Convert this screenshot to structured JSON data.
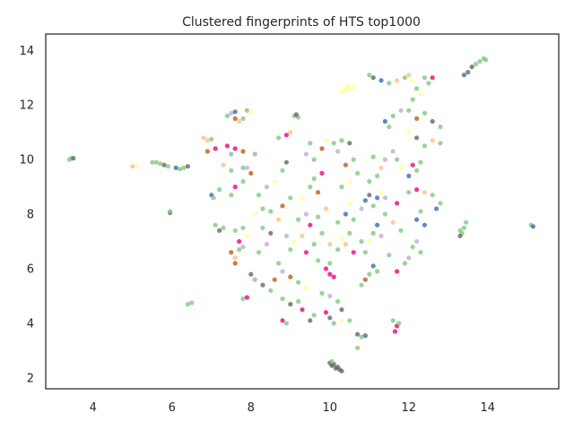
{
  "chart_data": {
    "type": "scatter",
    "title": "Clustered fingerprints of HTS top1000",
    "xlabel": "",
    "ylabel": "",
    "xlim": [
      2.8,
      15.8
    ],
    "ylim": [
      1.6,
      14.6
    ],
    "xticks": [
      4,
      6,
      8,
      10,
      12,
      14
    ],
    "yticks": [
      2,
      4,
      6,
      8,
      10,
      12,
      14
    ],
    "grid": false,
    "legend": "none",
    "point_alpha": 0.8,
    "palette": [
      "#7fc97f",
      "#beaed4",
      "#fdc086",
      "#ffff99",
      "#386cb0",
      "#f0027f",
      "#bf5b17",
      "#666666"
    ],
    "points": [
      {
        "x": 3.4,
        "y": 10.0,
        "c": 0
      },
      {
        "x": 3.45,
        "y": 10.05,
        "c": 0
      },
      {
        "x": 3.5,
        "y": 10.05,
        "c": 7
      },
      {
        "x": 5.0,
        "y": 9.75,
        "c": 2
      },
      {
        "x": 5.1,
        "y": 9.8,
        "c": 3
      },
      {
        "x": 5.5,
        "y": 9.9,
        "c": 0
      },
      {
        "x": 5.6,
        "y": 9.9,
        "c": 0
      },
      {
        "x": 5.7,
        "y": 9.85,
        "c": 0
      },
      {
        "x": 5.8,
        "y": 9.8,
        "c": 7
      },
      {
        "x": 5.9,
        "y": 9.75,
        "c": 0
      },
      {
        "x": 6.1,
        "y": 9.7,
        "c": 4
      },
      {
        "x": 6.2,
        "y": 9.65,
        "c": 0
      },
      {
        "x": 6.3,
        "y": 9.7,
        "c": 0
      },
      {
        "x": 6.4,
        "y": 9.75,
        "c": 7
      },
      {
        "x": 5.95,
        "y": 8.05,
        "c": 7
      },
      {
        "x": 5.95,
        "y": 8.1,
        "c": 0
      },
      {
        "x": 6.4,
        "y": 4.7,
        "c": 0
      },
      {
        "x": 6.5,
        "y": 4.75,
        "c": 0
      },
      {
        "x": 6.8,
        "y": 10.8,
        "c": 2
      },
      {
        "x": 6.9,
        "y": 10.7,
        "c": 2
      },
      {
        "x": 7.0,
        "y": 10.75,
        "c": 0
      },
      {
        "x": 6.9,
        "y": 10.3,
        "c": 6
      },
      {
        "x": 7.1,
        "y": 10.4,
        "c": 5
      },
      {
        "x": 7.0,
        "y": 8.7,
        "c": 4
      },
      {
        "x": 7.05,
        "y": 8.6,
        "c": 0
      },
      {
        "x": 7.2,
        "y": 8.9,
        "c": 0
      },
      {
        "x": 7.1,
        "y": 7.6,
        "c": 0
      },
      {
        "x": 7.2,
        "y": 7.4,
        "c": 7
      },
      {
        "x": 7.3,
        "y": 7.5,
        "c": 0
      },
      {
        "x": 7.4,
        "y": 11.6,
        "c": 0
      },
      {
        "x": 7.5,
        "y": 11.7,
        "c": 1
      },
      {
        "x": 7.6,
        "y": 11.5,
        "c": 6
      },
      {
        "x": 7.7,
        "y": 11.4,
        "c": 2
      },
      {
        "x": 7.8,
        "y": 11.5,
        "c": 0
      },
      {
        "x": 7.6,
        "y": 11.75,
        "c": 4
      },
      {
        "x": 7.9,
        "y": 11.8,
        "c": 0
      },
      {
        "x": 8.0,
        "y": 11.75,
        "c": 3
      },
      {
        "x": 7.4,
        "y": 10.5,
        "c": 5
      },
      {
        "x": 7.6,
        "y": 10.4,
        "c": 5
      },
      {
        "x": 7.8,
        "y": 10.3,
        "c": 6
      },
      {
        "x": 7.5,
        "y": 10.2,
        "c": 0
      },
      {
        "x": 7.3,
        "y": 9.8,
        "c": 2
      },
      {
        "x": 7.5,
        "y": 9.6,
        "c": 0
      },
      {
        "x": 7.8,
        "y": 9.7,
        "c": 0
      },
      {
        "x": 7.9,
        "y": 9.7,
        "c": 1
      },
      {
        "x": 8.0,
        "y": 9.5,
        "c": 6
      },
      {
        "x": 8.1,
        "y": 10.2,
        "c": 0
      },
      {
        "x": 7.6,
        "y": 9.0,
        "c": 5
      },
      {
        "x": 7.8,
        "y": 9.2,
        "c": 0
      },
      {
        "x": 7.5,
        "y": 8.7,
        "c": 0
      },
      {
        "x": 7.6,
        "y": 7.4,
        "c": 0
      },
      {
        "x": 7.7,
        "y": 7.0,
        "c": 5
      },
      {
        "x": 7.9,
        "y": 7.2,
        "c": 3
      },
      {
        "x": 7.8,
        "y": 7.5,
        "c": 0
      },
      {
        "x": 7.5,
        "y": 6.6,
        "c": 6
      },
      {
        "x": 7.6,
        "y": 6.4,
        "c": 2
      },
      {
        "x": 7.7,
        "y": 6.7,
        "c": 0
      },
      {
        "x": 7.8,
        "y": 6.8,
        "c": 1
      },
      {
        "x": 7.6,
        "y": 6.2,
        "c": 6
      },
      {
        "x": 7.8,
        "y": 4.9,
        "c": 0
      },
      {
        "x": 7.9,
        "y": 4.95,
        "c": 5
      },
      {
        "x": 8.0,
        "y": 5.8,
        "c": 7
      },
      {
        "x": 8.1,
        "y": 5.6,
        "c": 0
      },
      {
        "x": 8.3,
        "y": 5.4,
        "c": 7
      },
      {
        "x": 8.5,
        "y": 5.2,
        "c": 0
      },
      {
        "x": 8.6,
        "y": 5.6,
        "c": 6
      },
      {
        "x": 8.2,
        "y": 6.6,
        "c": 0
      },
      {
        "x": 8.4,
        "y": 6.9,
        "c": 1
      },
      {
        "x": 8.5,
        "y": 7.3,
        "c": 7
      },
      {
        "x": 8.3,
        "y": 7.5,
        "c": 0
      },
      {
        "x": 8.1,
        "y": 8.0,
        "c": 3
      },
      {
        "x": 8.3,
        "y": 8.2,
        "c": 0
      },
      {
        "x": 8.5,
        "y": 8.1,
        "c": 0
      },
      {
        "x": 8.7,
        "y": 7.8,
        "c": 2
      },
      {
        "x": 8.8,
        "y": 8.3,
        "c": 6
      },
      {
        "x": 8.2,
        "y": 8.7,
        "c": 0
      },
      {
        "x": 8.4,
        "y": 9.0,
        "c": 1
      },
      {
        "x": 8.6,
        "y": 9.2,
        "c": 3
      },
      {
        "x": 8.8,
        "y": 9.6,
        "c": 0
      },
      {
        "x": 8.9,
        "y": 9.9,
        "c": 7
      },
      {
        "x": 8.7,
        "y": 10.8,
        "c": 0
      },
      {
        "x": 8.9,
        "y": 10.9,
        "c": 5
      },
      {
        "x": 9.0,
        "y": 11.0,
        "c": 2
      },
      {
        "x": 9.1,
        "y": 11.6,
        "c": 0
      },
      {
        "x": 9.2,
        "y": 11.55,
        "c": 0
      },
      {
        "x": 9.15,
        "y": 11.65,
        "c": 7
      },
      {
        "x": 8.7,
        "y": 6.2,
        "c": 0
      },
      {
        "x": 8.8,
        "y": 5.9,
        "c": 1
      },
      {
        "x": 9.0,
        "y": 5.7,
        "c": 6
      },
      {
        "x": 9.2,
        "y": 5.5,
        "c": 0
      },
      {
        "x": 9.4,
        "y": 5.3,
        "c": 3
      },
      {
        "x": 8.8,
        "y": 4.9,
        "c": 0
      },
      {
        "x": 9.0,
        "y": 4.7,
        "c": 7
      },
      {
        "x": 9.2,
        "y": 4.8,
        "c": 0
      },
      {
        "x": 9.3,
        "y": 4.5,
        "c": 5
      },
      {
        "x": 9.5,
        "y": 4.1,
        "c": 7
      },
      {
        "x": 8.8,
        "y": 4.1,
        "c": 5
      },
      {
        "x": 8.9,
        "y": 4.0,
        "c": 0
      },
      {
        "x": 9.6,
        "y": 4.3,
        "c": 0
      },
      {
        "x": 9.0,
        "y": 6.7,
        "c": 0
      },
      {
        "x": 9.1,
        "y": 7.0,
        "c": 3
      },
      {
        "x": 9.3,
        "y": 7.2,
        "c": 2
      },
      {
        "x": 9.4,
        "y": 6.6,
        "c": 5
      },
      {
        "x": 9.6,
        "y": 6.9,
        "c": 0
      },
      {
        "x": 9.2,
        "y": 7.8,
        "c": 0
      },
      {
        "x": 9.4,
        "y": 8.0,
        "c": 1
      },
      {
        "x": 9.5,
        "y": 7.6,
        "c": 5
      },
      {
        "x": 9.7,
        "y": 7.9,
        "c": 0
      },
      {
        "x": 9.9,
        "y": 8.2,
        "c": 2
      },
      {
        "x": 9.3,
        "y": 8.6,
        "c": 3
      },
      {
        "x": 9.5,
        "y": 9.0,
        "c": 0
      },
      {
        "x": 9.7,
        "y": 8.8,
        "c": 6
      },
      {
        "x": 9.6,
        "y": 9.3,
        "c": 0
      },
      {
        "x": 9.8,
        "y": 9.5,
        "c": 5
      },
      {
        "x": 9.4,
        "y": 10.2,
        "c": 1
      },
      {
        "x": 9.6,
        "y": 10.0,
        "c": 0
      },
      {
        "x": 9.8,
        "y": 10.4,
        "c": 6
      },
      {
        "x": 9.5,
        "y": 10.6,
        "c": 0
      },
      {
        "x": 9.9,
        "y": 10.7,
        "c": 3
      },
      {
        "x": 9.7,
        "y": 6.3,
        "c": 0
      },
      {
        "x": 9.9,
        "y": 6.0,
        "c": 5
      },
      {
        "x": 10.0,
        "y": 5.8,
        "c": 5
      },
      {
        "x": 10.1,
        "y": 5.7,
        "c": 5
      },
      {
        "x": 10.0,
        "y": 6.2,
        "c": 0
      },
      {
        "x": 9.8,
        "y": 5.1,
        "c": 0
      },
      {
        "x": 10.0,
        "y": 5.0,
        "c": 1
      },
      {
        "x": 10.2,
        "y": 4.8,
        "c": 0
      },
      {
        "x": 10.3,
        "y": 4.5,
        "c": 7
      },
      {
        "x": 10.0,
        "y": 4.2,
        "c": 7
      },
      {
        "x": 10.1,
        "y": 4.0,
        "c": 0
      },
      {
        "x": 10.3,
        "y": 4.1,
        "c": 3
      },
      {
        "x": 10.5,
        "y": 4.1,
        "c": 0
      },
      {
        "x": 9.9,
        "y": 4.4,
        "c": 5
      },
      {
        "x": 10.0,
        "y": 2.55,
        "c": 7
      },
      {
        "x": 10.05,
        "y": 2.45,
        "c": 7
      },
      {
        "x": 10.1,
        "y": 2.5,
        "c": 7
      },
      {
        "x": 10.15,
        "y": 2.35,
        "c": 7
      },
      {
        "x": 10.2,
        "y": 2.4,
        "c": 7
      },
      {
        "x": 10.25,
        "y": 2.3,
        "c": 7
      },
      {
        "x": 10.3,
        "y": 2.25,
        "c": 7
      },
      {
        "x": 10.05,
        "y": 2.6,
        "c": 0
      },
      {
        "x": 10.2,
        "y": 6.7,
        "c": 0
      },
      {
        "x": 10.3,
        "y": 7.1,
        "c": 3
      },
      {
        "x": 10.4,
        "y": 6.9,
        "c": 2
      },
      {
        "x": 10.5,
        "y": 7.3,
        "c": 0
      },
      {
        "x": 10.6,
        "y": 6.6,
        "c": 5
      },
      {
        "x": 10.2,
        "y": 7.7,
        "c": 0
      },
      {
        "x": 10.4,
        "y": 8.0,
        "c": 4
      },
      {
        "x": 10.6,
        "y": 7.8,
        "c": 0
      },
      {
        "x": 10.5,
        "y": 8.4,
        "c": 3
      },
      {
        "x": 10.8,
        "y": 8.2,
        "c": 1
      },
      {
        "x": 10.3,
        "y": 9.0,
        "c": 0
      },
      {
        "x": 10.5,
        "y": 9.2,
        "c": 3
      },
      {
        "x": 10.7,
        "y": 9.5,
        "c": 0
      },
      {
        "x": 10.4,
        "y": 9.8,
        "c": 6
      },
      {
        "x": 10.6,
        "y": 10.0,
        "c": 0
      },
      {
        "x": 10.1,
        "y": 10.6,
        "c": 0
      },
      {
        "x": 10.3,
        "y": 10.7,
        "c": 0
      },
      {
        "x": 10.5,
        "y": 10.6,
        "c": 7
      },
      {
        "x": 10.2,
        "y": 10.3,
        "c": 1
      },
      {
        "x": 10.3,
        "y": 12.5,
        "c": 3
      },
      {
        "x": 10.4,
        "y": 12.55,
        "c": 3
      },
      {
        "x": 10.5,
        "y": 12.6,
        "c": 3
      },
      {
        "x": 10.6,
        "y": 12.65,
        "c": 3
      },
      {
        "x": 10.45,
        "y": 12.7,
        "c": 3
      },
      {
        "x": 10.7,
        "y": 3.6,
        "c": 7
      },
      {
        "x": 10.8,
        "y": 3.5,
        "c": 0
      },
      {
        "x": 10.9,
        "y": 3.55,
        "c": 4
      },
      {
        "x": 10.7,
        "y": 3.1,
        "c": 0
      },
      {
        "x": 10.8,
        "y": 5.4,
        "c": 0
      },
      {
        "x": 10.9,
        "y": 5.6,
        "c": 6
      },
      {
        "x": 11.0,
        "y": 5.8,
        "c": 0
      },
      {
        "x": 11.1,
        "y": 6.1,
        "c": 4
      },
      {
        "x": 11.2,
        "y": 5.9,
        "c": 0
      },
      {
        "x": 10.9,
        "y": 6.6,
        "c": 0
      },
      {
        "x": 11.0,
        "y": 7.0,
        "c": 3
      },
      {
        "x": 11.1,
        "y": 7.3,
        "c": 0
      },
      {
        "x": 11.2,
        "y": 7.6,
        "c": 4
      },
      {
        "x": 11.3,
        "y": 7.2,
        "c": 1
      },
      {
        "x": 10.9,
        "y": 8.5,
        "c": 4
      },
      {
        "x": 11.0,
        "y": 8.7,
        "c": 7
      },
      {
        "x": 11.1,
        "y": 8.3,
        "c": 0
      },
      {
        "x": 11.2,
        "y": 8.6,
        "c": 4
      },
      {
        "x": 11.3,
        "y": 8.8,
        "c": 3
      },
      {
        "x": 11.0,
        "y": 9.2,
        "c": 0
      },
      {
        "x": 11.2,
        "y": 9.4,
        "c": 0
      },
      {
        "x": 11.3,
        "y": 9.7,
        "c": 2
      },
      {
        "x": 11.1,
        "y": 10.1,
        "c": 0
      },
      {
        "x": 11.4,
        "y": 10.0,
        "c": 1
      },
      {
        "x": 11.0,
        "y": 13.1,
        "c": 0
      },
      {
        "x": 11.1,
        "y": 13.0,
        "c": 7
      },
      {
        "x": 11.3,
        "y": 12.9,
        "c": 4
      },
      {
        "x": 11.5,
        "y": 12.8,
        "c": 0
      },
      {
        "x": 11.7,
        "y": 12.9,
        "c": 2
      },
      {
        "x": 11.9,
        "y": 13.0,
        "c": 0
      },
      {
        "x": 11.4,
        "y": 11.4,
        "c": 4
      },
      {
        "x": 11.6,
        "y": 11.6,
        "c": 0
      },
      {
        "x": 11.8,
        "y": 11.8,
        "c": 1
      },
      {
        "x": 11.5,
        "y": 11.2,
        "c": 0
      },
      {
        "x": 11.6,
        "y": 10.3,
        "c": 1
      },
      {
        "x": 11.7,
        "y": 10.0,
        "c": 0
      },
      {
        "x": 11.8,
        "y": 9.7,
        "c": 3
      },
      {
        "x": 11.4,
        "y": 8.0,
        "c": 0
      },
      {
        "x": 11.6,
        "y": 7.7,
        "c": 2
      },
      {
        "x": 11.8,
        "y": 7.4,
        "c": 0
      },
      {
        "x": 11.7,
        "y": 8.4,
        "c": 5
      },
      {
        "x": 11.5,
        "y": 6.5,
        "c": 0
      },
      {
        "x": 11.7,
        "y": 5.9,
        "c": 5
      },
      {
        "x": 11.9,
        "y": 6.2,
        "c": 0
      },
      {
        "x": 12.0,
        "y": 6.4,
        "c": 1
      },
      {
        "x": 11.6,
        "y": 4.1,
        "c": 0
      },
      {
        "x": 11.7,
        "y": 3.9,
        "c": 5
      },
      {
        "x": 11.65,
        "y": 3.7,
        "c": 5
      },
      {
        "x": 11.75,
        "y": 4.0,
        "c": 0
      },
      {
        "x": 12.0,
        "y": 13.1,
        "c": 2
      },
      {
        "x": 12.1,
        "y": 12.9,
        "c": 3
      },
      {
        "x": 12.2,
        "y": 12.6,
        "c": 0
      },
      {
        "x": 12.3,
        "y": 12.4,
        "c": 3
      },
      {
        "x": 12.1,
        "y": 12.2,
        "c": 0
      },
      {
        "x": 12.4,
        "y": 13.0,
        "c": 0
      },
      {
        "x": 12.5,
        "y": 12.8,
        "c": 0
      },
      {
        "x": 12.6,
        "y": 13.0,
        "c": 5
      },
      {
        "x": 12.0,
        "y": 11.8,
        "c": 0
      },
      {
        "x": 12.2,
        "y": 11.5,
        "c": 6
      },
      {
        "x": 12.4,
        "y": 11.7,
        "c": 0
      },
      {
        "x": 12.6,
        "y": 11.4,
        "c": 7
      },
      {
        "x": 12.8,
        "y": 11.2,
        "c": 0
      },
      {
        "x": 12.0,
        "y": 11.0,
        "c": 3
      },
      {
        "x": 12.2,
        "y": 10.8,
        "c": 7
      },
      {
        "x": 12.4,
        "y": 10.5,
        "c": 0
      },
      {
        "x": 12.6,
        "y": 10.7,
        "c": 2
      },
      {
        "x": 12.8,
        "y": 10.6,
        "c": 0
      },
      {
        "x": 12.0,
        "y": 9.4,
        "c": 4
      },
      {
        "x": 12.2,
        "y": 9.6,
        "c": 0
      },
      {
        "x": 12.1,
        "y": 9.8,
        "c": 5
      },
      {
        "x": 12.3,
        "y": 9.9,
        "c": 0
      },
      {
        "x": 12.0,
        "y": 8.8,
        "c": 0
      },
      {
        "x": 12.2,
        "y": 8.9,
        "c": 5
      },
      {
        "x": 12.4,
        "y": 8.8,
        "c": 2
      },
      {
        "x": 12.6,
        "y": 8.7,
        "c": 0
      },
      {
        "x": 12.8,
        "y": 8.4,
        "c": 0
      },
      {
        "x": 12.2,
        "y": 7.8,
        "c": 4
      },
      {
        "x": 12.4,
        "y": 7.6,
        "c": 4
      },
      {
        "x": 12.3,
        "y": 8.1,
        "c": 0
      },
      {
        "x": 12.7,
        "y": 8.2,
        "c": 4
      },
      {
        "x": 12.1,
        "y": 6.8,
        "c": 0
      },
      {
        "x": 12.3,
        "y": 6.6,
        "c": 0
      },
      {
        "x": 12.2,
        "y": 7.0,
        "c": 1
      },
      {
        "x": 13.3,
        "y": 7.4,
        "c": 0
      },
      {
        "x": 13.35,
        "y": 7.3,
        "c": 0
      },
      {
        "x": 13.4,
        "y": 7.5,
        "c": 0
      },
      {
        "x": 13.45,
        "y": 7.7,
        "c": 0
      },
      {
        "x": 13.3,
        "y": 7.2,
        "c": 7
      },
      {
        "x": 13.5,
        "y": 13.2,
        "c": 7
      },
      {
        "x": 13.6,
        "y": 13.4,
        "c": 7
      },
      {
        "x": 13.7,
        "y": 13.5,
        "c": 0
      },
      {
        "x": 13.8,
        "y": 13.6,
        "c": 0
      },
      {
        "x": 13.9,
        "y": 13.7,
        "c": 0
      },
      {
        "x": 13.95,
        "y": 13.65,
        "c": 0
      },
      {
        "x": 13.4,
        "y": 13.1,
        "c": 4
      },
      {
        "x": 15.1,
        "y": 7.6,
        "c": 0
      },
      {
        "x": 15.15,
        "y": 7.55,
        "c": 4
      },
      {
        "x": 9.0,
        "y": 8.6,
        "c": 0
      },
      {
        "x": 8.9,
        "y": 7.2,
        "c": 1
      },
      {
        "x": 9.8,
        "y": 7.3,
        "c": 0
      },
      {
        "x": 10.0,
        "y": 6.9,
        "c": 2
      },
      {
        "x": 10.8,
        "y": 7.0,
        "c": 0
      },
      {
        "x": 11.4,
        "y": 8.6,
        "c": 1
      }
    ]
  }
}
